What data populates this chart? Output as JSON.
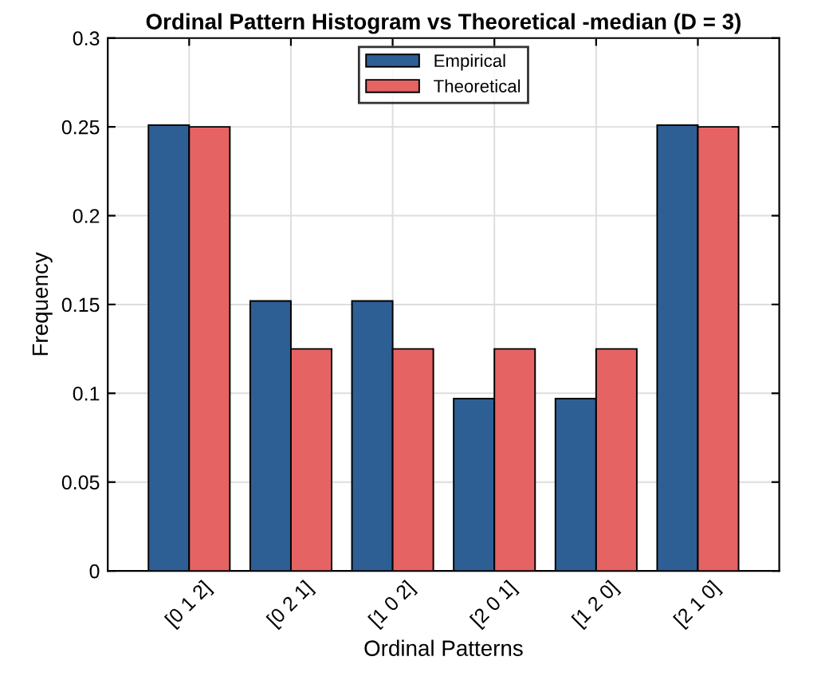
{
  "chart_data": {
    "type": "bar",
    "title": "Ordinal Pattern Histogram vs Theoretical -median (D = 3)",
    "xlabel": "Ordinal Patterns",
    "ylabel": "Frequency",
    "categories": [
      "[0 1 2]",
      "[0 2 1]",
      "[1 0 2]",
      "[2 0 1]",
      "[1 2 0]",
      "[2 1 0]"
    ],
    "series": [
      {
        "name": "Empirical",
        "color": "#2e5f94",
        "values": [
          0.251,
          0.152,
          0.152,
          0.097,
          0.097,
          0.251
        ]
      },
      {
        "name": "Theoretical",
        "color": "#e66363",
        "values": [
          0.25,
          0.125,
          0.125,
          0.125,
          0.125,
          0.25
        ]
      }
    ],
    "ylim": [
      0,
      0.3
    ],
    "yticks": [
      0,
      0.05,
      0.1,
      0.15,
      0.2,
      0.25,
      0.3
    ],
    "grid": true,
    "legend": "top"
  }
}
